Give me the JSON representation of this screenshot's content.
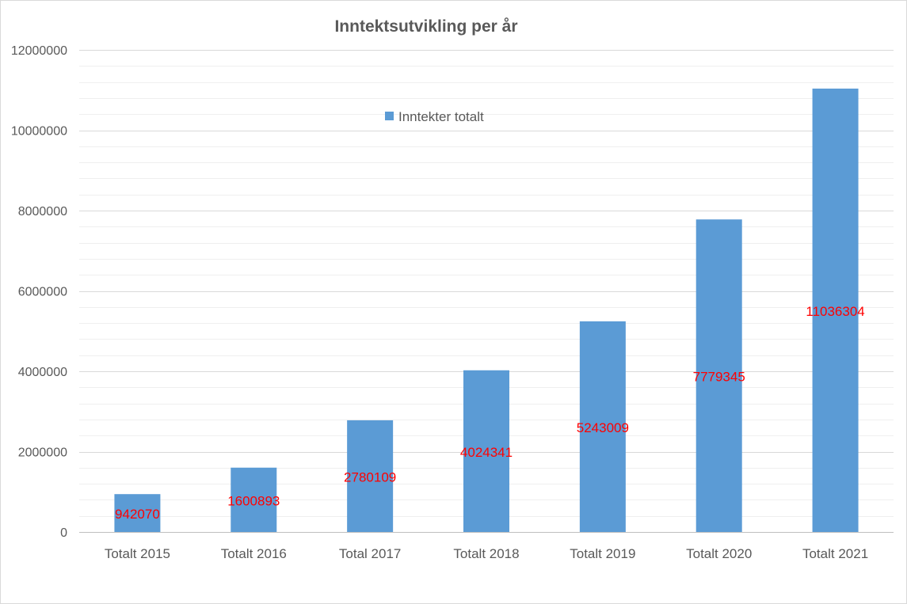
{
  "chart_data": {
    "type": "bar",
    "title": "Inntektsutvikling per år",
    "xlabel": "",
    "ylabel": "",
    "categories": [
      "Totalt 2015",
      "Totalt 2016",
      "Total 2017",
      "Totalt 2018",
      "Totalt 2019",
      "Totalt 2020",
      "Totalt 2021"
    ],
    "series": [
      {
        "name": "Inntekter totalt",
        "color": "#5b9bd5",
        "values": [
          942070,
          1600893,
          2780109,
          4024341,
          5243009,
          7779345,
          11036304
        ]
      }
    ],
    "data_label_color": "#ff0000",
    "ylim": [
      0,
      12000000
    ],
    "yticks": [
      0,
      2000000,
      4000000,
      6000000,
      8000000,
      10000000,
      12000000
    ],
    "minor_step": 400000,
    "grid": true,
    "legend_position": "top-center"
  }
}
